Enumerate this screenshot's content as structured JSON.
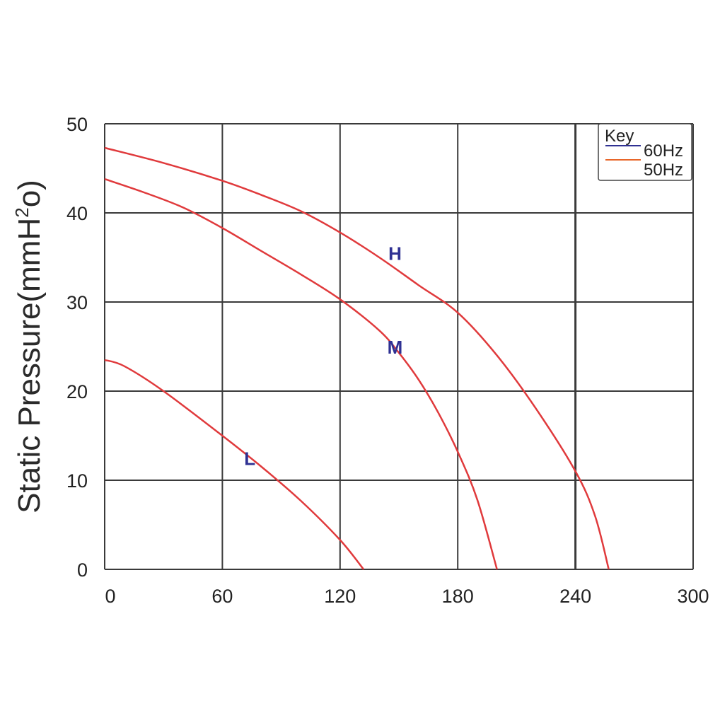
{
  "chart_data": {
    "type": "line",
    "title": "",
    "xlabel": "",
    "ylabel": {
      "before": "Static Pressure(mmH",
      "sup": "2",
      "after": "o)"
    },
    "xlim": [
      0,
      300
    ],
    "ylim": [
      0,
      50
    ],
    "x_ticks": [
      "0",
      "60",
      "120",
      "180",
      "240",
      "300"
    ],
    "y_ticks": [
      "0",
      "10",
      "20",
      "30",
      "40",
      "50"
    ],
    "grid": true,
    "legend": {
      "title": "Key",
      "placement": "top-right",
      "entries": [
        {
          "label": "60Hz",
          "color": "#2f3193"
        },
        {
          "label": "50Hz",
          "color": "#e8662a"
        }
      ]
    },
    "curve_color": "#e03a3c",
    "curve_label_color": "#2f3193",
    "series": [
      {
        "name": "H",
        "label_at": [
          148,
          35.5
        ],
        "x": [
          0,
          30,
          60,
          80,
          100,
          120,
          140,
          160,
          180,
          200,
          220,
          240,
          250,
          257
        ],
        "y": [
          47.3,
          45.6,
          43.6,
          42.0,
          40.2,
          37.8,
          35.0,
          31.9,
          28.8,
          24.0,
          18.0,
          11.0,
          6.0,
          0
        ]
      },
      {
        "name": "M",
        "label_at": [
          148,
          25
        ],
        "x": [
          0,
          20,
          40,
          60,
          80,
          100,
          120,
          140,
          150,
          160,
          170,
          180,
          190,
          200
        ],
        "y": [
          43.8,
          42.3,
          40.6,
          38.3,
          35.7,
          33.1,
          30.3,
          26.8,
          24.3,
          21.3,
          17.6,
          13.2,
          7.8,
          0
        ]
      },
      {
        "name": "L",
        "label_at": [
          74,
          12.5
        ],
        "x": [
          0,
          10,
          30,
          60,
          80,
          100,
          120,
          132
        ],
        "y": [
          23.5,
          22.8,
          20.0,
          15.0,
          11.5,
          7.7,
          3.3,
          0
        ]
      }
    ]
  }
}
